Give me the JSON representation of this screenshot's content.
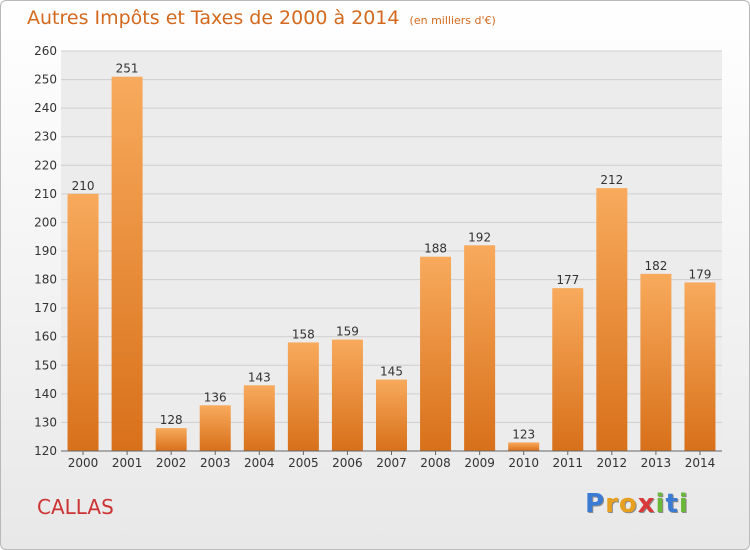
{
  "title": "Autres Impôts et Taxes de 2000 à 2014",
  "subtitle": "(en milliers d'€)",
  "commune": "CALLAS",
  "logo": {
    "letters": [
      "P",
      "r",
      "o",
      "x",
      "i",
      "t",
      "i"
    ],
    "colors": [
      "#3b7bd4",
      "#e8a020",
      "#e8a020",
      "#d83a3a",
      "#6ab83a",
      "#3b7bd4",
      "#6ab83a"
    ]
  },
  "colors": {
    "bar_top": "#f8aa5c",
    "bar_bottom": "#d8701a",
    "title": "#d2691e",
    "commune": "#cc3333"
  },
  "chart_data": {
    "type": "bar",
    "categories": [
      "2000",
      "2001",
      "2002",
      "2003",
      "2004",
      "2005",
      "2006",
      "2007",
      "2008",
      "2009",
      "2010",
      "2011",
      "2012",
      "2013",
      "2014"
    ],
    "values": [
      210,
      251,
      128,
      136,
      143,
      158,
      159,
      145,
      188,
      192,
      123,
      177,
      212,
      182,
      179
    ],
    "ylim": [
      120,
      260
    ],
    "yticks": [
      120,
      130,
      140,
      150,
      160,
      170,
      180,
      190,
      200,
      210,
      220,
      230,
      240,
      250,
      260
    ],
    "grid": true
  }
}
